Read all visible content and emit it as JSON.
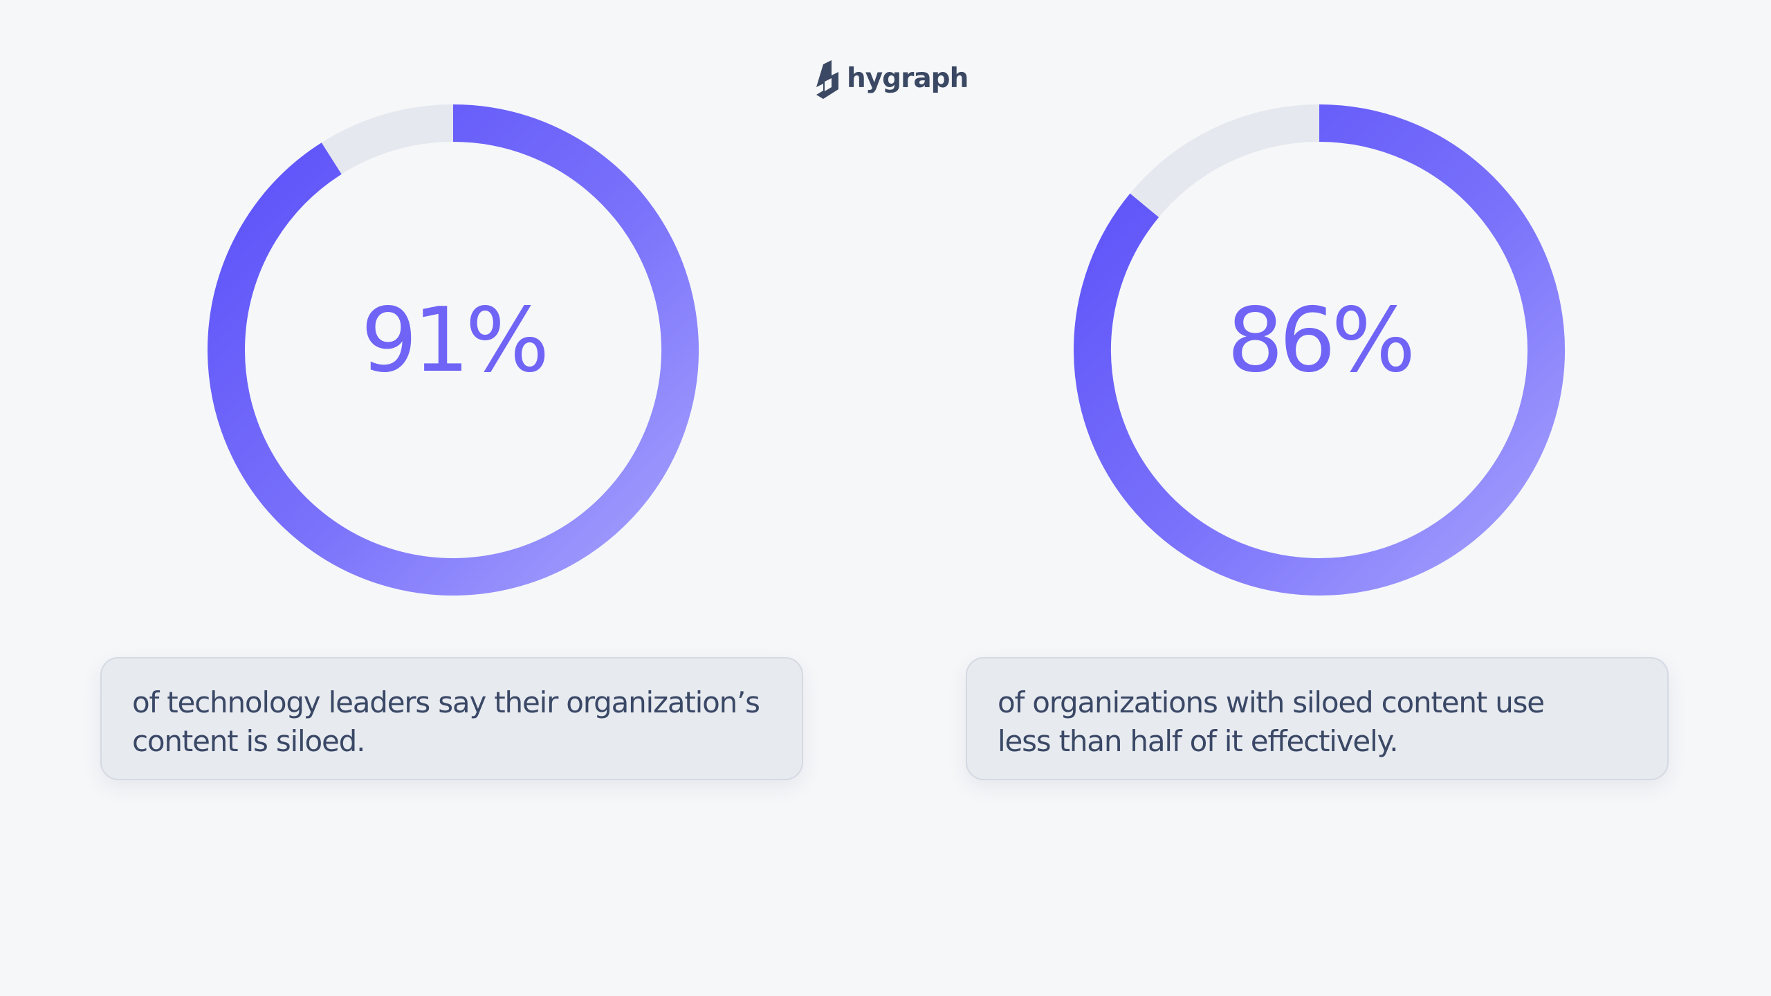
{
  "brand": {
    "name": "hygraph",
    "accent": "#6f64f5",
    "text_color": "#3b4863",
    "logo_icon": "hygraph-logo-mark"
  },
  "chart_data": [
    {
      "type": "pie",
      "variant": "donut",
      "center_label": "91%",
      "slices": [
        {
          "value": 91,
          "color": "#6f64f5"
        },
        {
          "value": 9,
          "color": "#e5e8ee"
        }
      ],
      "caption": [
        "of technology leaders say their organization’s",
        "content is siloed."
      ]
    },
    {
      "type": "pie",
      "variant": "donut",
      "center_label": "86%",
      "slices": [
        {
          "value": 86,
          "color": "#6f64f5"
        },
        {
          "value": 14,
          "color": "#e5e8ee"
        }
      ],
      "caption": [
        "of organizations with siloed content use",
        "less than half of it effectively."
      ]
    }
  ]
}
